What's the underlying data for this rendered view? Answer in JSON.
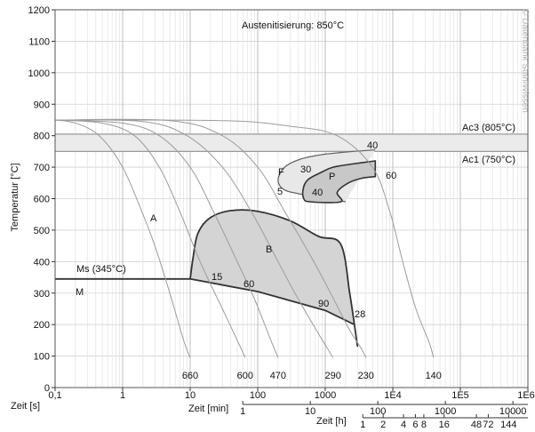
{
  "chart_data": {
    "type": "line",
    "title": "Austenitisierung: 850°C",
    "watermark": "© Datenbank StahlWissen",
    "ylabel": "Temperatur [°C]",
    "ylim": [
      0,
      1200
    ],
    "yticks": [
      "0",
      "100",
      "200",
      "300",
      "400",
      "500",
      "600",
      "700",
      "800",
      "900",
      "1000",
      "1100",
      "1200"
    ],
    "x_axes": [
      {
        "label": "Zeit [s]",
        "ticks": [
          "0,1",
          "1",
          "10",
          "100",
          "1000",
          "1E4",
          "1E5",
          "1E6"
        ]
      },
      {
        "label": "Zeit [min]",
        "ticks": [
          "1",
          "10",
          "100",
          "1000",
          "10000"
        ]
      },
      {
        "label": "Zeit [h]",
        "ticks": [
          "1",
          "2",
          "4",
          "6",
          "8",
          "16",
          "48",
          "72",
          "144"
        ]
      }
    ],
    "reference_lines": [
      {
        "label": "Ac3 (805°C)",
        "y": 805
      },
      {
        "label": "Ac1 (750°C)",
        "y": 750
      },
      {
        "label": "Ms (345°C)",
        "y": 345
      }
    ],
    "phase_labels": [
      "A",
      "B",
      "F",
      "P",
      "M"
    ],
    "cooling_curves": [
      {
        "end_label": "660",
        "points": [
          [
            0.1,
            850
          ],
          [
            0.2,
            840
          ],
          [
            0.45,
            800
          ],
          [
            1,
            700
          ],
          [
            2,
            550
          ],
          [
            3,
            450
          ],
          [
            5,
            300
          ],
          [
            8,
            150
          ],
          [
            10,
            95
          ]
        ]
      },
      {
        "end_label": "600",
        "points": [
          [
            0.1,
            850
          ],
          [
            0.5,
            840
          ],
          [
            1.5,
            800
          ],
          [
            3.5,
            700
          ],
          [
            7,
            560
          ],
          [
            14,
            400
          ],
          [
            30,
            250
          ],
          [
            55,
            130
          ],
          [
            65,
            95
          ]
        ]
      },
      {
        "end_label": "470",
        "points": [
          [
            0.1,
            850
          ],
          [
            1,
            840
          ],
          [
            3.5,
            800
          ],
          [
            10,
            700
          ],
          [
            22,
            560
          ],
          [
            45,
            420
          ],
          [
            90,
            280
          ],
          [
            150,
            160
          ],
          [
            200,
            95
          ]
        ]
      },
      {
        "end_label": "290",
        "points": [
          [
            0.1,
            850
          ],
          [
            2,
            845
          ],
          [
            9,
            800
          ],
          [
            30,
            700
          ],
          [
            80,
            560
          ],
          [
            200,
            400
          ],
          [
            400,
            280
          ],
          [
            800,
            170
          ],
          [
            1300,
            95
          ]
        ]
      },
      {
        "end_label": "230",
        "points": [
          [
            0.1,
            850
          ],
          [
            5,
            848
          ],
          [
            30,
            800
          ],
          [
            100,
            700
          ],
          [
            250,
            560
          ],
          [
            600,
            420
          ],
          [
            1200,
            300
          ],
          [
            2200,
            190
          ],
          [
            3500,
            120
          ],
          [
            4000,
            95
          ]
        ]
      },
      {
        "end_label": "140",
        "points": [
          [
            0.1,
            850
          ],
          [
            30,
            848
          ],
          [
            300,
            830
          ],
          [
            1500,
            800
          ],
          [
            5000,
            700
          ],
          [
            9000,
            560
          ],
          [
            14000,
            400
          ],
          [
            22000,
            250
          ],
          [
            35000,
            140
          ],
          [
            40000,
            95
          ]
        ]
      }
    ],
    "curve_hardness_values": [
      "15",
      "60",
      "90",
      "28",
      "40",
      "30",
      "5",
      "40",
      "60"
    ],
    "regions": [
      {
        "name": "B",
        "outline": [
          [
            10,
            345
          ],
          [
            11,
            410
          ],
          [
            13,
            490
          ],
          [
            20,
            540
          ],
          [
            40,
            562
          ],
          [
            100,
            560
          ],
          [
            300,
            530
          ],
          [
            800,
            480
          ],
          [
            1700,
            455
          ],
          [
            2300,
            300
          ],
          [
            2700,
            200
          ],
          [
            3000,
            130
          ]
        ],
        "lower_boundary": [
          [
            10,
            345
          ],
          [
            100,
            305
          ],
          [
            1000,
            245
          ],
          [
            2700,
            200
          ]
        ]
      },
      {
        "name": "F",
        "outline": [
          [
            5500,
            755
          ],
          [
            2000,
            748
          ],
          [
            900,
            740
          ],
          [
            420,
            725
          ],
          [
            250,
            700
          ],
          [
            200,
            660
          ],
          [
            240,
            630
          ],
          [
            420,
            615
          ],
          [
            2000,
            590
          ]
        ]
      },
      {
        "name": "P",
        "outline": [
          [
            5500,
            720
          ],
          [
            2500,
            710
          ],
          [
            1300,
            700
          ],
          [
            900,
            685
          ],
          [
            550,
            660
          ],
          [
            470,
            630
          ],
          [
            480,
            600
          ],
          [
            600,
            590
          ],
          [
            1700,
            590
          ],
          [
            1500,
            620
          ],
          [
            2200,
            650
          ],
          [
            3500,
            665
          ],
          [
            5500,
            670
          ]
        ]
      }
    ]
  }
}
